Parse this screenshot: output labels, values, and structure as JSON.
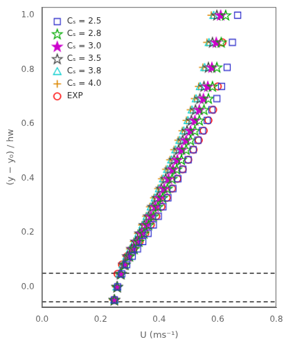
{
  "chart_data": {
    "type": "scatter",
    "xlabel": "U (ms⁻¹)",
    "ylabel": "(y − y₀) / hw",
    "xlim": [
      0,
      0.8
    ],
    "ylim": [
      -0.075,
      1.03
    ],
    "xticks": [
      {
        "value": 0,
        "label": "0.0"
      },
      0.2,
      0.4,
      0.6,
      0.8
    ],
    "yticks": [
      {
        "value": 0,
        "label": "0.0"
      },
      0.2,
      0.4,
      0.6,
      0.8,
      {
        "value": 1.0,
        "label": "1.0"
      }
    ],
    "grid": false,
    "legend": "upper left",
    "hlines": [
      {
        "y": 0.05,
        "line_style": "dashed",
        "color": "#000000"
      },
      {
        "y": -0.055,
        "line_style": "dashed",
        "color": "#000000"
      }
    ],
    "series": [
      {
        "name": "Cₛ = 2.5",
        "color": "#3333cc",
        "marker": "open_square",
        "x": [
          0.247,
          0.258,
          0.272,
          0.289,
          0.308,
          0.326,
          0.344,
          0.362,
          0.38,
          0.397,
          0.413,
          0.43,
          0.447,
          0.464,
          0.481,
          0.499,
          0.516,
          0.532,
          0.548,
          0.564,
          0.58,
          0.597,
          0.613,
          0.632,
          0.65,
          0.668
        ],
        "values": [
          -0.048,
          0.0,
          0.048,
          0.082,
          0.113,
          0.14,
          0.167,
          0.197,
          0.228,
          0.26,
          0.295,
          0.328,
          0.362,
          0.398,
          0.433,
          0.468,
          0.505,
          0.54,
          0.575,
          0.613,
          0.652,
          0.693,
          0.738,
          0.808,
          0.9,
          1.0
        ]
      },
      {
        "name": "Cₛ = 2.8",
        "color": "#00aa00",
        "marker": "open_star",
        "x": [
          0.247,
          0.257,
          0.27,
          0.284,
          0.299,
          0.315,
          0.331,
          0.348,
          0.364,
          0.38,
          0.396,
          0.412,
          0.428,
          0.444,
          0.46,
          0.476,
          0.492,
          0.507,
          0.522,
          0.537,
          0.553,
          0.568,
          0.582,
          0.597,
          0.612,
          0.627
        ],
        "values": [
          -0.048,
          0.0,
          0.048,
          0.082,
          0.113,
          0.14,
          0.167,
          0.197,
          0.228,
          0.26,
          0.295,
          0.328,
          0.362,
          0.398,
          0.433,
          0.468,
          0.505,
          0.54,
          0.575,
          0.613,
          0.652,
          0.693,
          0.738,
          0.808,
          0.9,
          1.0
        ]
      },
      {
        "name": "Cₛ = 3.0",
        "color": "#cc00cc",
        "marker": "star",
        "x": [
          0.247,
          0.257,
          0.269,
          0.282,
          0.296,
          0.311,
          0.326,
          0.341,
          0.357,
          0.372,
          0.387,
          0.402,
          0.417,
          0.432,
          0.447,
          0.462,
          0.477,
          0.492,
          0.507,
          0.522,
          0.537,
          0.551,
          0.566,
          0.58,
          0.595,
          0.61
        ],
        "values": [
          -0.048,
          0.0,
          0.048,
          0.082,
          0.113,
          0.14,
          0.167,
          0.197,
          0.228,
          0.26,
          0.295,
          0.328,
          0.362,
          0.398,
          0.433,
          0.468,
          0.505,
          0.54,
          0.575,
          0.613,
          0.652,
          0.693,
          0.738,
          0.808,
          0.9,
          1.0
        ]
      },
      {
        "name": "Cₛ = 3.5",
        "color": "#444444",
        "marker": "open_star",
        "x": [
          0.247,
          0.256,
          0.267,
          0.279,
          0.292,
          0.306,
          0.32,
          0.334,
          0.349,
          0.364,
          0.378,
          0.393,
          0.407,
          0.422,
          0.437,
          0.451,
          0.466,
          0.48,
          0.495,
          0.51,
          0.524,
          0.539,
          0.553,
          0.568,
          0.582,
          0.597
        ],
        "values": [
          -0.048,
          0.0,
          0.048,
          0.082,
          0.113,
          0.14,
          0.167,
          0.197,
          0.228,
          0.26,
          0.295,
          0.328,
          0.362,
          0.398,
          0.433,
          0.468,
          0.505,
          0.54,
          0.575,
          0.613,
          0.652,
          0.693,
          0.738,
          0.808,
          0.9,
          1.0
        ]
      },
      {
        "name": "Cₛ = 3.8",
        "color": "#00cccc",
        "marker": "open_triangle",
        "x": [
          0.247,
          0.255,
          0.265,
          0.276,
          0.289,
          0.302,
          0.316,
          0.33,
          0.344,
          0.358,
          0.372,
          0.386,
          0.4,
          0.414,
          0.428,
          0.442,
          0.456,
          0.47,
          0.484,
          0.498,
          0.512,
          0.526,
          0.54,
          0.555,
          0.57,
          0.586
        ],
        "values": [
          -0.048,
          0.0,
          0.048,
          0.082,
          0.113,
          0.14,
          0.167,
          0.197,
          0.228,
          0.26,
          0.295,
          0.328,
          0.362,
          0.398,
          0.433,
          0.468,
          0.505,
          0.54,
          0.575,
          0.613,
          0.652,
          0.693,
          0.738,
          0.808,
          0.9,
          1.0
        ]
      },
      {
        "name": "Cₛ = 4.0",
        "color": "#dd8800",
        "marker": "plus",
        "x": [
          0.242,
          0.252,
          0.263,
          0.275,
          0.287,
          0.3,
          0.313,
          0.327,
          0.341,
          0.355,
          0.368,
          0.382,
          0.396,
          0.409,
          0.423,
          0.437,
          0.451,
          0.465,
          0.479,
          0.493,
          0.507,
          0.521,
          0.535,
          0.549,
          0.563,
          0.578
        ],
        "values": [
          -0.048,
          0.0,
          0.048,
          0.082,
          0.113,
          0.14,
          0.167,
          0.197,
          0.228,
          0.26,
          0.295,
          0.328,
          0.362,
          0.398,
          0.433,
          0.468,
          0.505,
          0.54,
          0.575,
          0.613,
          0.652,
          0.693,
          0.738,
          0.808,
          0.9,
          1.0
        ]
      },
      {
        "name": "EXP",
        "color": "#ff0000",
        "marker": "open_circle",
        "x": [
          0.247,
          0.258,
          0.273,
          0.291,
          0.312,
          0.333,
          0.352,
          0.371,
          0.39,
          0.408,
          0.426,
          0.444,
          0.462,
          0.48,
          0.499,
          0.517,
          0.535,
          0.552,
          0.568,
          0.584,
          0.6,
          0.616
        ],
        "values": [
          -0.048,
          0.048,
          0.082,
          0.113,
          0.14,
          0.167,
          0.197,
          0.228,
          0.26,
          0.295,
          0.328,
          0.362,
          0.398,
          0.433,
          0.468,
          0.505,
          0.54,
          0.575,
          0.613,
          0.652,
          0.738,
          0.9
        ]
      }
    ]
  }
}
